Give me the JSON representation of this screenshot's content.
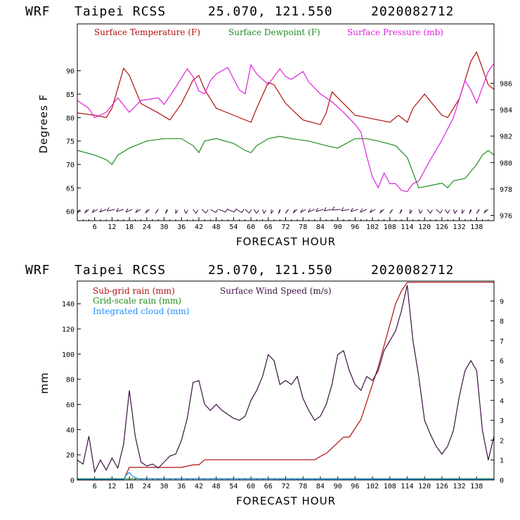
{
  "chart_data": [
    {
      "type": "line",
      "header": {
        "model": "WRF",
        "station": "Taipei RCSS",
        "coords": "25.070, 121.550",
        "init": "2020082712"
      },
      "xlabel": "FORECAST HOUR",
      "ylabel": "Degrees F",
      "xlim": [
        0,
        144
      ],
      "ylim": [
        58,
        100
      ],
      "y2lim": [
        975.6,
        990.5
      ],
      "xticks": [
        "6",
        "12",
        "18",
        "24",
        "30",
        "36",
        "42",
        "48",
        "54",
        "60",
        "66",
        "72",
        "78",
        "84",
        "90",
        "96",
        "102",
        "108",
        "114",
        "120",
        "126",
        "132",
        "138"
      ],
      "yticks": [
        "60",
        "65",
        "70",
        "75",
        "80",
        "85",
        "90"
      ],
      "y2ticks": [
        "976",
        "978",
        "980",
        "982",
        "984",
        "986"
      ],
      "legend": [
        "Surface Temperature (F)",
        "Surface Dewpoint (F)",
        "Surface Pressure (mb)"
      ],
      "colors": {
        "temperature": "#b01010",
        "dewpoint": "#228b22",
        "pressure": "#dd22dd"
      },
      "series": [
        {
          "name": "Surface Temperature (F)",
          "axis": "left",
          "x": [
            0,
            6,
            10,
            12,
            16,
            18,
            22,
            28,
            32,
            36,
            40,
            42,
            44,
            48,
            54,
            60,
            62,
            66,
            68,
            72,
            78,
            84,
            86,
            88,
            92,
            96,
            100,
            104,
            108,
            111,
            114,
            116,
            120,
            124,
            126,
            128,
            132,
            136,
            138,
            142,
            144
          ],
          "values": [
            81,
            80.5,
            80,
            82,
            90.5,
            89,
            83,
            81,
            79.5,
            83,
            88,
            89,
            86,
            82,
            80.5,
            79,
            82,
            87.5,
            87,
            83,
            79.5,
            78.5,
            81,
            85.5,
            83,
            80.5,
            80,
            79.5,
            79,
            80.5,
            79,
            82,
            85,
            82,
            80.5,
            80,
            84,
            92,
            94,
            87,
            86
          ]
        },
        {
          "name": "Surface Dewpoint (F)",
          "axis": "left",
          "x": [
            0,
            6,
            10,
            12,
            14,
            18,
            24,
            30,
            36,
            40,
            42,
            44,
            48,
            54,
            58,
            60,
            62,
            66,
            70,
            74,
            80,
            86,
            90,
            96,
            100,
            104,
            110,
            114,
            118,
            122,
            126,
            128,
            130,
            134,
            138,
            140,
            142,
            144
          ],
          "values": [
            73,
            72,
            71,
            70,
            72,
            73.5,
            75,
            75.5,
            75.5,
            74,
            72.5,
            75,
            75.5,
            74.5,
            73,
            72.5,
            74,
            75.5,
            76,
            75.5,
            75,
            74,
            73.5,
            75.5,
            75.5,
            75,
            74,
            71.5,
            65,
            65.5,
            66,
            65,
            66.5,
            67,
            70,
            72,
            73,
            72
          ]
        },
        {
          "name": "Surface Pressure (mb)",
          "axis": "right",
          "x": [
            0,
            4,
            6,
            10,
            14,
            18,
            22,
            28,
            30,
            34,
            38,
            40,
            42,
            44,
            46,
            48,
            52,
            56,
            58,
            60,
            62,
            66,
            70,
            72,
            74,
            78,
            80,
            84,
            86,
            88,
            92,
            96,
            98,
            100,
            102,
            104,
            106,
            108,
            110,
            112,
            114,
            116,
            118,
            122,
            126,
            130,
            134,
            136,
            138,
            142,
            144
          ],
          "values": [
            984.7,
            984.1,
            983.4,
            983.8,
            984.9,
            983.8,
            984.7,
            984.9,
            984.4,
            985.7,
            987.1,
            986.5,
            985.4,
            985.2,
            986.2,
            986.7,
            987.2,
            985.5,
            985.2,
            987.4,
            986.7,
            985.9,
            987.1,
            986.5,
            986.3,
            986.9,
            986.1,
            985.2,
            984.9,
            984.6,
            983.8,
            982.9,
            982.3,
            980.5,
            978.9,
            978.1,
            979.2,
            978.4,
            978.4,
            977.9,
            977.8,
            978.4,
            978.6,
            980.2,
            981.7,
            983.4,
            986.2,
            985.5,
            984.5,
            986.9,
            987.5
          ]
        }
      ],
      "wind_barbs": "row of wind barbs along the bottom of the plot"
    },
    {
      "type": "line",
      "header": {
        "model": "WRF",
        "station": "Taipei RCSS",
        "coords": "25.070, 121.550",
        "init": "2020082712"
      },
      "xlabel": "FORECAST HOUR",
      "ylabel": "mm",
      "xlim": [
        0,
        144
      ],
      "ylim": [
        0,
        158
      ],
      "y2lim": [
        0,
        10
      ],
      "xticks": [
        "6",
        "12",
        "18",
        "24",
        "30",
        "36",
        "42",
        "48",
        "54",
        "60",
        "66",
        "72",
        "78",
        "84",
        "90",
        "96",
        "102",
        "108",
        "114",
        "120",
        "126",
        "132",
        "138"
      ],
      "yticks": [
        "0",
        "20",
        "40",
        "60",
        "80",
        "100",
        "120",
        "140"
      ],
      "y2ticks": [
        "0",
        "1",
        "2",
        "3",
        "4",
        "5",
        "6",
        "7",
        "8",
        "9"
      ],
      "legend": [
        "Sub-grid rain (mm)",
        "Surface Wind Speed (m/s)",
        "Grid-scale rain (mm)",
        "Integrated cloud (mm)"
      ],
      "colors": {
        "subgrid": "#b01010",
        "wind": "#3a1040",
        "gridscale": "#228b22",
        "cloud": "#1e90ff"
      },
      "series": [
        {
          "name": "Sub-grid rain (mm)",
          "axis": "left",
          "x": [
            0,
            16,
            18,
            36,
            40,
            42,
            44,
            60,
            66,
            82,
            85,
            86,
            92,
            94,
            98,
            104,
            110,
            112,
            114,
            122,
            138,
            144
          ],
          "values": [
            0,
            0,
            10,
            10,
            12,
            12,
            16,
            16,
            16,
            16,
            20,
            21,
            34,
            34,
            48,
            90,
            140,
            150,
            157,
            157,
            157,
            157
          ]
        },
        {
          "name": "Grid-scale rain (mm)",
          "axis": "left",
          "x": [
            0,
            144
          ],
          "values": [
            1,
            1
          ]
        },
        {
          "name": "Integrated cloud (mm)",
          "axis": "left",
          "x": [
            0,
            16,
            17,
            18,
            19,
            21,
            144
          ],
          "values": [
            0.5,
            0.5,
            4,
            6,
            3,
            1,
            0.5
          ]
        },
        {
          "name": "Surface Wind Speed (m/s)",
          "axis": "right",
          "x": [
            0,
            2,
            4,
            6,
            8,
            10,
            12,
            14,
            16,
            18,
            20,
            22,
            24,
            26,
            28,
            30,
            32,
            34,
            36,
            38,
            40,
            42,
            44,
            46,
            48,
            50,
            52,
            54,
            56,
            58,
            60,
            62,
            64,
            66,
            68,
            70,
            72,
            74,
            76,
            78,
            80,
            82,
            84,
            86,
            88,
            90,
            92,
            94,
            96,
            98,
            100,
            102,
            104,
            106,
            108,
            110,
            112,
            114,
            116,
            118,
            120,
            122,
            124,
            126,
            128,
            130,
            132,
            134,
            136,
            138,
            140,
            142,
            144
          ],
          "values": [
            1.0,
            0.8,
            2.2,
            0.4,
            1.0,
            0.5,
            1.1,
            0.6,
            1.8,
            4.5,
            2.2,
            0.9,
            0.7,
            0.8,
            0.6,
            0.9,
            1.2,
            1.3,
            2.0,
            3.1,
            4.9,
            5.0,
            3.8,
            3.5,
            3.8,
            3.5,
            3.3,
            3.1,
            3.0,
            3.2,
            4.0,
            4.5,
            5.2,
            6.3,
            6.0,
            4.8,
            5.0,
            4.8,
            5.2,
            4.1,
            3.5,
            3.0,
            3.2,
            3.8,
            4.8,
            6.3,
            6.5,
            5.5,
            4.8,
            4.5,
            5.2,
            5.0,
            5.5,
            6.5,
            7.0,
            7.5,
            8.5,
            9.8,
            7.0,
            5.2,
            3.0,
            2.3,
            1.7,
            1.3,
            1.7,
            2.5,
            4.2,
            5.5,
            6.0,
            5.5,
            2.5,
            1.0,
            2.2
          ]
        }
      ]
    }
  ]
}
